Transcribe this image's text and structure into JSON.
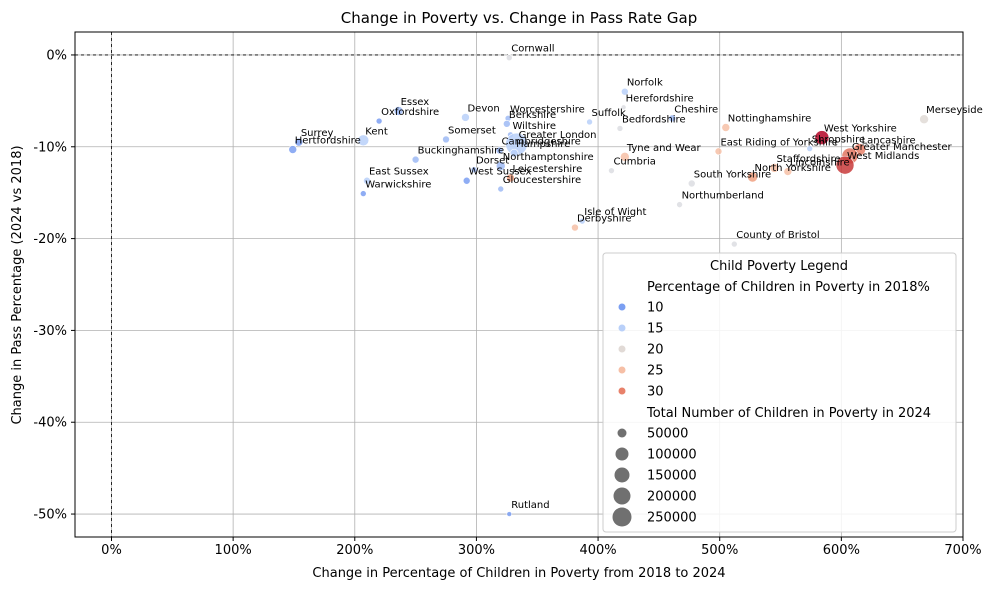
{
  "chart_data": {
    "type": "scatter",
    "title": "Change in Poverty vs. Change in Pass Rate Gap",
    "xlabel": "Change in Percentage of Children in Poverty from 2018 to 2024",
    "ylabel": "Change in Pass Percentage (2024 vs 2018)",
    "xlim": [
      -30,
      700
    ],
    "ylim": [
      -52.5,
      2.5
    ],
    "x_ticks": [
      "0%",
      "100%",
      "200%",
      "300%",
      "400%",
      "500%",
      "600%",
      "700%"
    ],
    "y_ticks": [
      "0%",
      "-10%",
      "-20%",
      "-30%",
      "-40%",
      "-50%"
    ],
    "grid": true,
    "reference_lines": [
      "x = 0",
      "y = 0"
    ],
    "legend": {
      "title": "Child Poverty Legend",
      "placement": "lower-right",
      "hue_title": "Percentage of Children in Poverty in 2018%",
      "hue_entries": [
        {
          "label": "10",
          "color": "#7b9ff2"
        },
        {
          "label": "15",
          "color": "#b9d0f9"
        },
        {
          "label": "20",
          "color": "#e1dad6"
        },
        {
          "label": "25",
          "color": "#f6bfa6"
        },
        {
          "label": "30",
          "color": "#e8816a"
        }
      ],
      "size_title": "Total Number of Children in Poverty in 2024",
      "size_entries": [
        "50000",
        "100000",
        "150000",
        "200000",
        "250000"
      ]
    },
    "points": [
      {
        "label": "Cornwall",
        "x": 327,
        "y": -0.3,
        "color": "#dcdde2",
        "size": 6
      },
      {
        "label": "Norfolk",
        "x": 422,
        "y": -4.0,
        "color": "#b9d0f9",
        "size": 7
      },
      {
        "label": "Herefordshire",
        "x": 421,
        "y": -5.7,
        "color": "#dcdde2",
        "size": 5
      },
      {
        "label": "Essex",
        "x": 236,
        "y": -6.1,
        "color": "#9ebaf5",
        "size": 9
      },
      {
        "label": "Devon",
        "x": 291,
        "y": -6.8,
        "color": "#b9d0f9",
        "size": 8
      },
      {
        "label": "Worcestershire",
        "x": 326,
        "y": -6.9,
        "color": "#9ebaf5",
        "size": 6
      },
      {
        "label": "Cheshire",
        "x": 461,
        "y": -6.9,
        "color": "#9ebaf5",
        "size": 7
      },
      {
        "label": "Merseyside",
        "x": 668,
        "y": -7.0,
        "color": "#e1dad6",
        "size": 9
      },
      {
        "label": "Oxfordshire",
        "x": 220,
        "y": -7.2,
        "color": "#7b9ff2",
        "size": 6
      },
      {
        "label": "Suffolk",
        "x": 393,
        "y": -7.3,
        "color": "#b9d0f9",
        "size": 6
      },
      {
        "label": "Berkshire",
        "x": 325,
        "y": -7.5,
        "color": "#9ebaf5",
        "size": 7
      },
      {
        "label": "Nottinghamshire",
        "x": 505,
        "y": -7.9,
        "color": "#f6bfa6",
        "size": 8
      },
      {
        "label": "Bedfordshire",
        "x": 418,
        "y": -8.0,
        "color": "#dcdde2",
        "size": 6
      },
      {
        "label": "Wiltshire",
        "x": 328,
        "y": -8.7,
        "color": "#9ebaf5",
        "size": 6
      },
      {
        "label": "West Yorkshire",
        "x": 584,
        "y": -9.0,
        "color": "#b40426",
        "size": 14
      },
      {
        "label": "Somerset",
        "x": 275,
        "y": -9.2,
        "color": "#9ebaf5",
        "size": 7
      },
      {
        "label": "Kent",
        "x": 207,
        "y": -9.3,
        "color": "#b9d0f9",
        "size": 11
      },
      {
        "label": "Surrey",
        "x": 154,
        "y": -9.5,
        "color": "#7b9ff2",
        "size": 8
      },
      {
        "label": "Greater London",
        "x": 333,
        "y": -9.7,
        "color": "#b9d0f9",
        "size": 22
      },
      {
        "label": "Shropshire",
        "x": 574,
        "y": -10.2,
        "color": "#b9d0f9",
        "size": 6
      },
      {
        "label": "Hertfordshire",
        "x": 149,
        "y": -10.3,
        "color": "#7b9ff2",
        "size": 8
      },
      {
        "label": "Lancashire",
        "x": 615,
        "y": -10.3,
        "color": "#e8816a",
        "size": 12
      },
      {
        "label": "East Riding of Yorkshire",
        "x": 499,
        "y": -10.5,
        "color": "#f6bfa6",
        "size": 7
      },
      {
        "label": "Cambridgeshire",
        "x": 319,
        "y": -10.4,
        "color": "#9ebaf5",
        "size": 7
      },
      {
        "label": "Hampshire",
        "x": 331,
        "y": -10.7,
        "color": "#b9d0f9",
        "size": 8
      },
      {
        "label": "Greater Manchester",
        "x": 607,
        "y": -11.0,
        "color": "#e07560",
        "size": 16
      },
      {
        "label": "Buckinghamshire",
        "x": 250,
        "y": -11.4,
        "color": "#9ebaf5",
        "size": 7
      },
      {
        "label": "Tyne and Wear",
        "x": 422,
        "y": -11.1,
        "color": "#f6bfa6",
        "size": 9
      },
      {
        "label": "West Midlands",
        "x": 603,
        "y": -12.0,
        "color": "#c83a3a",
        "size": 18
      },
      {
        "label": "Northamptonshire",
        "x": 320,
        "y": -12.1,
        "color": "#9ebaf5",
        "size": 9
      },
      {
        "label": "Dorset",
        "x": 298,
        "y": -12.5,
        "color": "#9ebaf5",
        "size": 6
      },
      {
        "label": "Staffordshire",
        "x": 545,
        "y": -12.3,
        "color": "#f6bfa6",
        "size": 9
      },
      {
        "label": "Lincolnshire",
        "x": 556,
        "y": -12.7,
        "color": "#f6bfa6",
        "size": 8
      },
      {
        "label": "Cumbria",
        "x": 411,
        "y": -12.6,
        "color": "#dcdde2",
        "size": 6
      },
      {
        "label": "North Yorkshire",
        "x": 527,
        "y": -13.3,
        "color": "#f0a080",
        "size": 10
      },
      {
        "label": "Leicestershire",
        "x": 328,
        "y": -13.4,
        "color": "#f0a080",
        "size": 8
      },
      {
        "label": "East Sussex",
        "x": 210,
        "y": -13.7,
        "color": "#b9d0f9",
        "size": 7
      },
      {
        "label": "West Sussex",
        "x": 292,
        "y": -13.7,
        "color": "#7b9ff2",
        "size": 7
      },
      {
        "label": "South Yorkshire",
        "x": 477,
        "y": -14.0,
        "color": "#dcdde2",
        "size": 7
      },
      {
        "label": "Gloucestershire",
        "x": 320,
        "y": -14.6,
        "color": "#9ebaf5",
        "size": 6
      },
      {
        "label": "Warwickshire",
        "x": 207,
        "y": -15.1,
        "color": "#7b9ff2",
        "size": 6
      },
      {
        "label": "Northumberland",
        "x": 467,
        "y": -16.3,
        "color": "#dcdde2",
        "size": 6
      },
      {
        "label": "Isle of Wight",
        "x": 387,
        "y": -18.1,
        "color": "#b9d0f9",
        "size": 6
      },
      {
        "label": "Derbyshire",
        "x": 381,
        "y": -18.8,
        "color": "#f6bfa6",
        "size": 7
      },
      {
        "label": "County of Bristol",
        "x": 512,
        "y": -20.6,
        "color": "#dcdde2",
        "size": 6
      },
      {
        "label": "Rutland",
        "x": 327,
        "y": -50.0,
        "color": "#7b9ff2",
        "size": 5
      }
    ]
  }
}
